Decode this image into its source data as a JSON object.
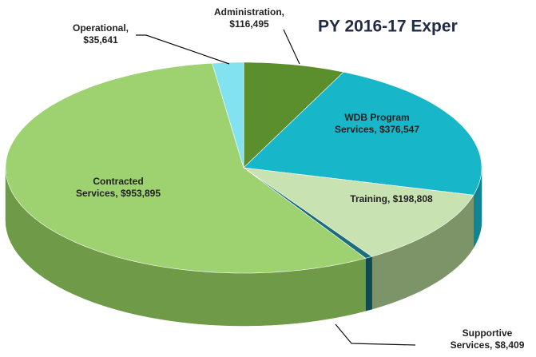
{
  "chart_data": {
    "type": "pie3d",
    "title": "PY 2016-17 Exper",
    "label_lines": [
      [
        "Administration,",
        "$116,495"
      ],
      [
        "WDB Program",
        "Services,  $376,547"
      ],
      [
        "Training,  $198,808"
      ],
      [
        "Supportive",
        "Services,  $8,409"
      ],
      [
        "Contracted",
        "Services,  $953,895"
      ],
      [
        "Operational,",
        "$35,641"
      ]
    ],
    "values": [
      116495,
      376547,
      198808,
      8409,
      953895,
      35641
    ],
    "colors": [
      "#5b8f2e",
      "#17b6c8",
      "#c8e2b2",
      "#1b6f7b",
      "#9ed16f",
      "#82e2ef"
    ],
    "side_colors": [
      "#3f6a1d",
      "#0f8593",
      "#7d9468",
      "#0f4a52",
      "#6f9a47",
      "#53aab5"
    ]
  }
}
